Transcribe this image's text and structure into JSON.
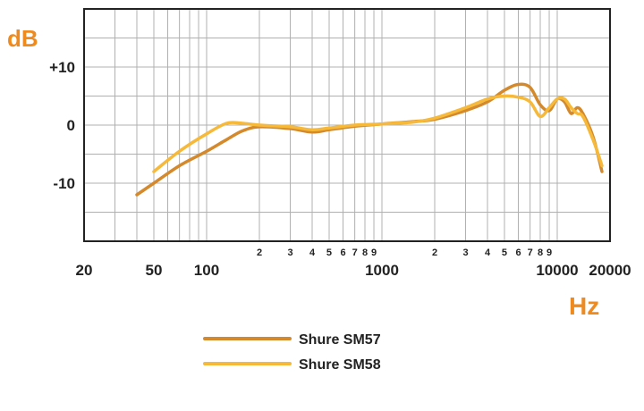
{
  "chart_data": {
    "type": "line",
    "y_unit_label": "dB",
    "x_unit_label": "Hz",
    "x_scale": "log",
    "xlim": [
      20,
      20000
    ],
    "ylim": [
      -20,
      20
    ],
    "grid": true,
    "legend_position": "bottom",
    "x_major_ticks": [
      {
        "value": 20,
        "label": "20"
      },
      {
        "value": 50,
        "label": "50"
      },
      {
        "value": 100,
        "label": "100"
      },
      {
        "value": 1000,
        "label": "1000"
      },
      {
        "value": 10000,
        "label": "10000"
      },
      {
        "value": 20000,
        "label": "20000"
      }
    ],
    "x_minor_ticks": [
      {
        "value": 200,
        "label": "2"
      },
      {
        "value": 300,
        "label": "3"
      },
      {
        "value": 400,
        "label": "4"
      },
      {
        "value": 500,
        "label": "5"
      },
      {
        "value": 600,
        "label": "6"
      },
      {
        "value": 700,
        "label": "7"
      },
      {
        "value": 800,
        "label": "8"
      },
      {
        "value": 900,
        "label": "9"
      },
      {
        "value": 2000,
        "label": "2"
      },
      {
        "value": 3000,
        "label": "3"
      },
      {
        "value": 4000,
        "label": "4"
      },
      {
        "value": 5000,
        "label": "5"
      },
      {
        "value": 6000,
        "label": "6"
      },
      {
        "value": 7000,
        "label": "7"
      },
      {
        "value": 8000,
        "label": "8"
      },
      {
        "value": 9000,
        "label": "9"
      }
    ],
    "x_gridlines": [
      30,
      40,
      50,
      60,
      70,
      80,
      90,
      100,
      200,
      300,
      400,
      500,
      600,
      700,
      800,
      900,
      1000,
      2000,
      3000,
      4000,
      5000,
      6000,
      7000,
      8000,
      9000,
      10000,
      20000
    ],
    "y_ticks": [
      {
        "value": 10,
        "label": "+10"
      },
      {
        "value": 0,
        "label": "0"
      },
      {
        "value": -10,
        "label": "-10"
      }
    ],
    "y_gridlines": [
      -15,
      -10,
      -5,
      0,
      5,
      10,
      15
    ],
    "series": [
      {
        "name": "Shure SM57",
        "color": "#d48a2c",
        "points": [
          [
            40,
            -12
          ],
          [
            50,
            -10
          ],
          [
            70,
            -7
          ],
          [
            100,
            -4.5
          ],
          [
            130,
            -2.5
          ],
          [
            160,
            -1
          ],
          [
            200,
            -0.3
          ],
          [
            300,
            -0.6
          ],
          [
            400,
            -1.2
          ],
          [
            500,
            -0.8
          ],
          [
            700,
            -0.2
          ],
          [
            1000,
            0.2
          ],
          [
            1500,
            0.6
          ],
          [
            2000,
            1
          ],
          [
            3000,
            2.5
          ],
          [
            4000,
            4
          ],
          [
            5000,
            6
          ],
          [
            6000,
            7
          ],
          [
            7000,
            6.5
          ],
          [
            8000,
            3.5
          ],
          [
            9000,
            2.5
          ],
          [
            10000,
            4.5
          ],
          [
            11000,
            4
          ],
          [
            12000,
            2
          ],
          [
            13000,
            3
          ],
          [
            14000,
            2
          ],
          [
            16000,
            -2
          ],
          [
            18000,
            -8
          ]
        ]
      },
      {
        "name": "Shure SM58",
        "color": "#f6b93a",
        "points": [
          [
            50,
            -8
          ],
          [
            70,
            -4.5
          ],
          [
            100,
            -1.5
          ],
          [
            130,
            0.3
          ],
          [
            160,
            0.3
          ],
          [
            200,
            0
          ],
          [
            300,
            -0.3
          ],
          [
            400,
            -0.8
          ],
          [
            500,
            -0.5
          ],
          [
            700,
            0
          ],
          [
            1000,
            0.2
          ],
          [
            1500,
            0.5
          ],
          [
            2000,
            1.2
          ],
          [
            3000,
            3
          ],
          [
            4000,
            4.5
          ],
          [
            5000,
            5
          ],
          [
            6000,
            4.8
          ],
          [
            7000,
            4
          ],
          [
            8000,
            1.5
          ],
          [
            9000,
            3
          ],
          [
            10000,
            4.5
          ],
          [
            11000,
            4.5
          ],
          [
            12000,
            3
          ],
          [
            13000,
            2
          ],
          [
            14000,
            1.5
          ],
          [
            16000,
            -2.5
          ],
          [
            18000,
            -7
          ]
        ]
      }
    ]
  }
}
